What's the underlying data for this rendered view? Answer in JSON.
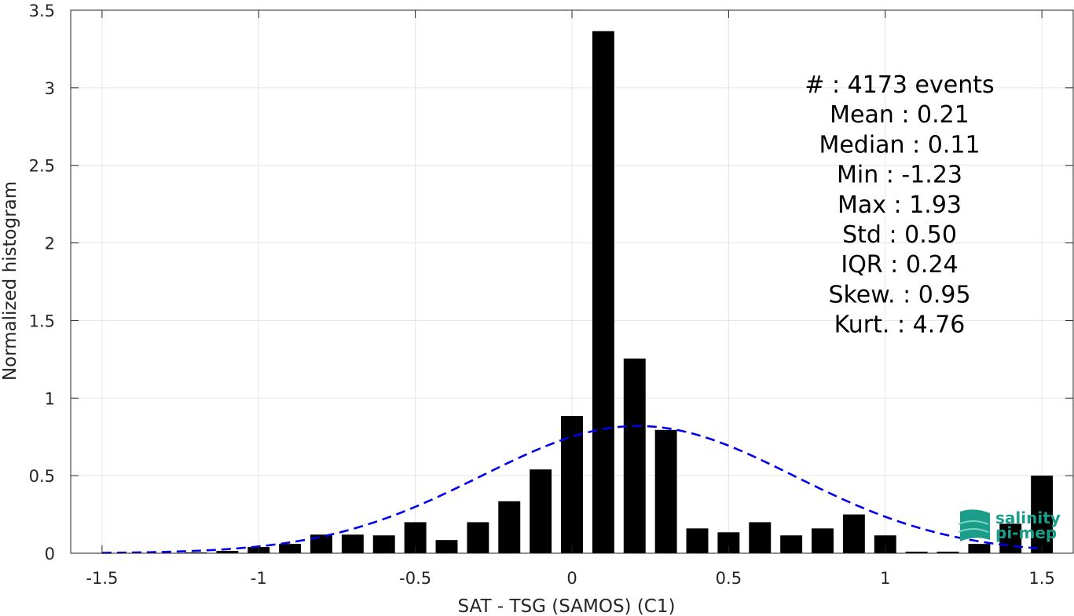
{
  "chart_data": {
    "type": "bar",
    "xlabel": "SAT - TSG (SAMOS) (C1)",
    "ylabel": "Normalized histogram",
    "xlim": [
      -1.6,
      1.6
    ],
    "ylim": [
      0,
      3.5
    ],
    "x_ticks": [
      -1.5,
      -1,
      -0.5,
      0,
      0.5,
      1,
      1.5
    ],
    "x_tick_labels": [
      "-1.5",
      "-1",
      "-0.5",
      "0",
      "0.5",
      "1",
      "1.5"
    ],
    "y_ticks": [
      0,
      0.5,
      1,
      1.5,
      2,
      2.5,
      3,
      3.5
    ],
    "y_tick_labels": [
      "0",
      "0.5",
      "1",
      "1.5",
      "2",
      "2.5",
      "3",
      "3.5"
    ],
    "grid": true,
    "bar_width": 0.07,
    "bars": {
      "x": [
        -1.5,
        -1.4,
        -1.3,
        -1.2,
        -1.1,
        -1.0,
        -0.9,
        -0.8,
        -0.7,
        -0.6,
        -0.5,
        -0.4,
        -0.3,
        -0.2,
        -0.1,
        0.0,
        0.1,
        0.2,
        0.3,
        0.4,
        0.5,
        0.6,
        0.7,
        0.8,
        0.9,
        1.0,
        1.1,
        1.2,
        1.3,
        1.4,
        1.5
      ],
      "values": [
        0.0,
        0.0,
        0.0,
        0.005,
        0.015,
        0.04,
        0.06,
        0.12,
        0.12,
        0.115,
        0.2,
        0.085,
        0.2,
        0.335,
        0.54,
        0.885,
        3.365,
        1.255,
        0.795,
        0.16,
        0.135,
        0.2,
        0.115,
        0.16,
        0.25,
        0.115,
        0.01,
        0.01,
        0.06,
        0.19,
        0.5
      ]
    },
    "fit": {
      "type": "normal",
      "mean": 0.21,
      "std": 0.5,
      "peak": 0.82,
      "x_range": [
        -1.5,
        1.5
      ],
      "color": "#0000ee",
      "style": "dashed"
    },
    "annotation_lines": [
      "#  : 4173 events",
      "Mean : 0.21",
      "Median : 0.11",
      "Min : -1.23",
      "Max : 1.93",
      "Std : 0.50",
      "IQR : 0.24",
      "Skew. : 0.95",
      "Kurt. : 4.76"
    ],
    "colors": {
      "bars": "#000000",
      "grid": "#e5e5e5",
      "axis": "#262626"
    }
  },
  "logo": {
    "line1": "salinity",
    "line2": "pi-mep",
    "color": "#1a9e8a"
  }
}
